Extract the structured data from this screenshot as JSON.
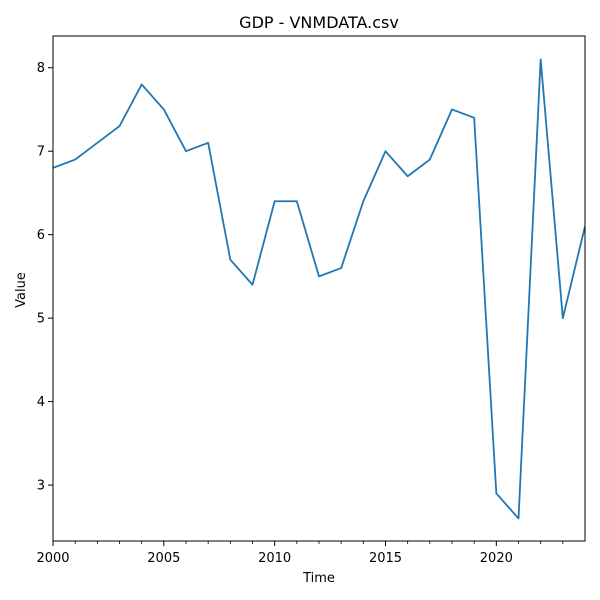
{
  "chart_data": {
    "type": "line",
    "title": "GDP - VNMDATA.csv",
    "xlabel": "Time",
    "ylabel": "Value",
    "xlim": [
      2000,
      2024
    ],
    "ylim": [
      2.33,
      8.38
    ],
    "x_major_ticks": [
      2000,
      2005,
      2010,
      2015,
      2020
    ],
    "x_minor_ticks": [
      2001,
      2002,
      2003,
      2004,
      2006,
      2007,
      2008,
      2009,
      2011,
      2012,
      2013,
      2014,
      2016,
      2017,
      2018,
      2019,
      2021,
      2022,
      2023
    ],
    "y_ticks": [
      3,
      4,
      5,
      6,
      7,
      8
    ],
    "grid": false,
    "line_color": "#1f77b4",
    "series": [
      {
        "x": [
          2000,
          2001,
          2002,
          2003,
          2004,
          2005,
          2006,
          2007,
          2008,
          2009,
          2010,
          2011,
          2012,
          2013,
          2014,
          2015,
          2016,
          2017,
          2018,
          2019,
          2020,
          2021,
          2022,
          2023,
          2024
        ],
        "values": [
          6.8,
          6.9,
          7.1,
          7.3,
          7.8,
          7.5,
          7.0,
          7.1,
          5.7,
          5.4,
          6.4,
          6.4,
          5.5,
          5.6,
          6.4,
          7.0,
          6.7,
          6.9,
          7.5,
          7.4,
          2.9,
          2.6,
          8.1,
          5.0,
          6.1
        ]
      }
    ]
  }
}
